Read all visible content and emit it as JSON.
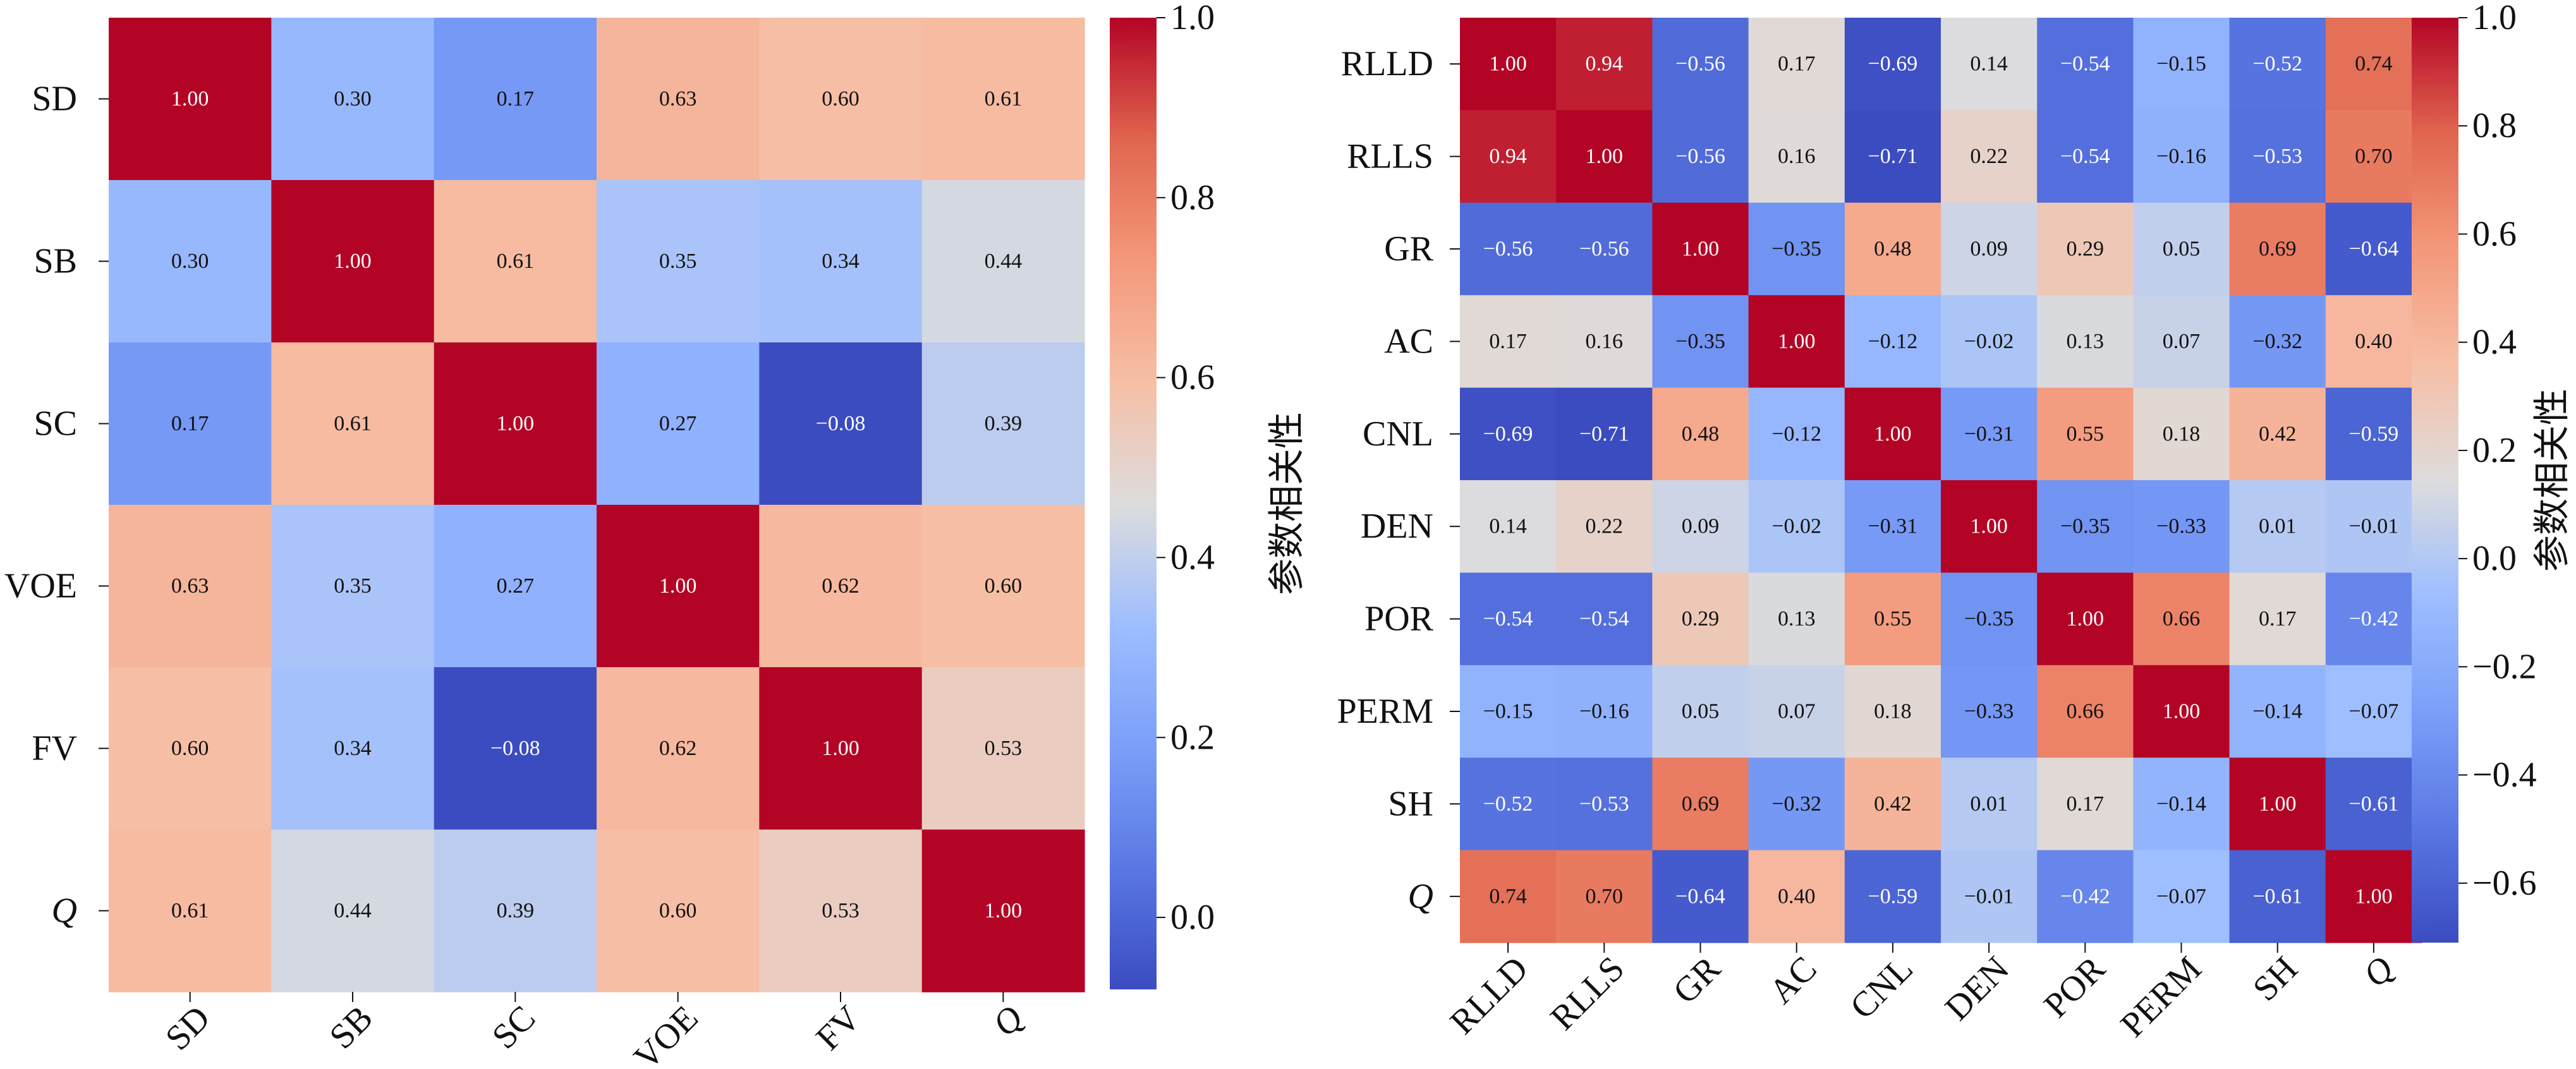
{
  "chart_data": [
    {
      "type": "heatmap",
      "title": "",
      "row_labels": [
        "SD",
        "SB",
        "SC",
        "VOE",
        "FV",
        "Q"
      ],
      "col_labels": [
        "SD",
        "SB",
        "SC",
        "VOE",
        "FV",
        "Q"
      ],
      "values": [
        [
          1.0,
          0.3,
          0.17,
          0.63,
          0.6,
          0.61
        ],
        [
          0.3,
          1.0,
          0.61,
          0.35,
          0.34,
          0.44
        ],
        [
          0.17,
          0.61,
          1.0,
          0.27,
          -0.08,
          0.39
        ],
        [
          0.63,
          0.35,
          0.27,
          1.0,
          0.62,
          0.6
        ],
        [
          0.6,
          0.34,
          -0.08,
          0.62,
          1.0,
          0.53
        ],
        [
          0.61,
          0.44,
          0.39,
          0.6,
          0.53,
          1.0
        ]
      ],
      "colormap": "coolwarm",
      "vmin": -0.08,
      "vmax": 1.0,
      "colorbar_ticks": [
        "0.0",
        "0.2",
        "0.4",
        "0.6",
        "0.8",
        "1.0"
      ],
      "colorbar_label": "参数相关性"
    },
    {
      "type": "heatmap",
      "title": "",
      "row_labels": [
        "RLLD",
        "RLLS",
        "GR",
        "AC",
        "CNL",
        "DEN",
        "POR",
        "PERM",
        "SH",
        "Q"
      ],
      "col_labels": [
        "RLLD",
        "RLLS",
        "GR",
        "AC",
        "CNL",
        "DEN",
        "POR",
        "PERM",
        "SH",
        "Q"
      ],
      "values": [
        [
          1.0,
          0.94,
          -0.56,
          0.17,
          -0.69,
          0.14,
          -0.54,
          -0.15,
          -0.52,
          0.74
        ],
        [
          0.94,
          1.0,
          -0.56,
          0.16,
          -0.71,
          0.22,
          -0.54,
          -0.16,
          -0.53,
          0.7
        ],
        [
          -0.56,
          -0.56,
          1.0,
          -0.35,
          0.48,
          0.09,
          0.29,
          0.05,
          0.69,
          -0.64
        ],
        [
          0.17,
          0.16,
          -0.35,
          1.0,
          -0.12,
          -0.02,
          0.13,
          0.07,
          -0.32,
          0.4
        ],
        [
          -0.69,
          -0.71,
          0.48,
          -0.12,
          1.0,
          -0.31,
          0.55,
          0.18,
          0.42,
          -0.59
        ],
        [
          0.14,
          0.22,
          0.09,
          -0.02,
          -0.31,
          1.0,
          -0.35,
          -0.33,
          0.01,
          -0.01
        ],
        [
          -0.54,
          -0.54,
          0.29,
          0.13,
          0.55,
          -0.35,
          1.0,
          0.66,
          0.17,
          -0.42
        ],
        [
          -0.15,
          -0.16,
          0.05,
          0.07,
          0.18,
          -0.33,
          0.66,
          1.0,
          -0.14,
          -0.07
        ],
        [
          -0.52,
          -0.53,
          0.69,
          -0.32,
          0.42,
          0.01,
          0.17,
          -0.14,
          1.0,
          -0.61
        ],
        [
          0.74,
          0.7,
          -0.64,
          0.4,
          -0.59,
          -0.01,
          -0.42,
          -0.07,
          -0.61,
          1.0
        ]
      ],
      "colormap": "coolwarm",
      "vmin": -0.71,
      "vmax": 1.0,
      "colorbar_ticks": [
        "−0.6",
        "−0.4",
        "−0.2",
        "0.0",
        "0.2",
        "0.4",
        "0.6",
        "0.8",
        "1.0"
      ],
      "colorbar_label": "参数相关性"
    }
  ]
}
